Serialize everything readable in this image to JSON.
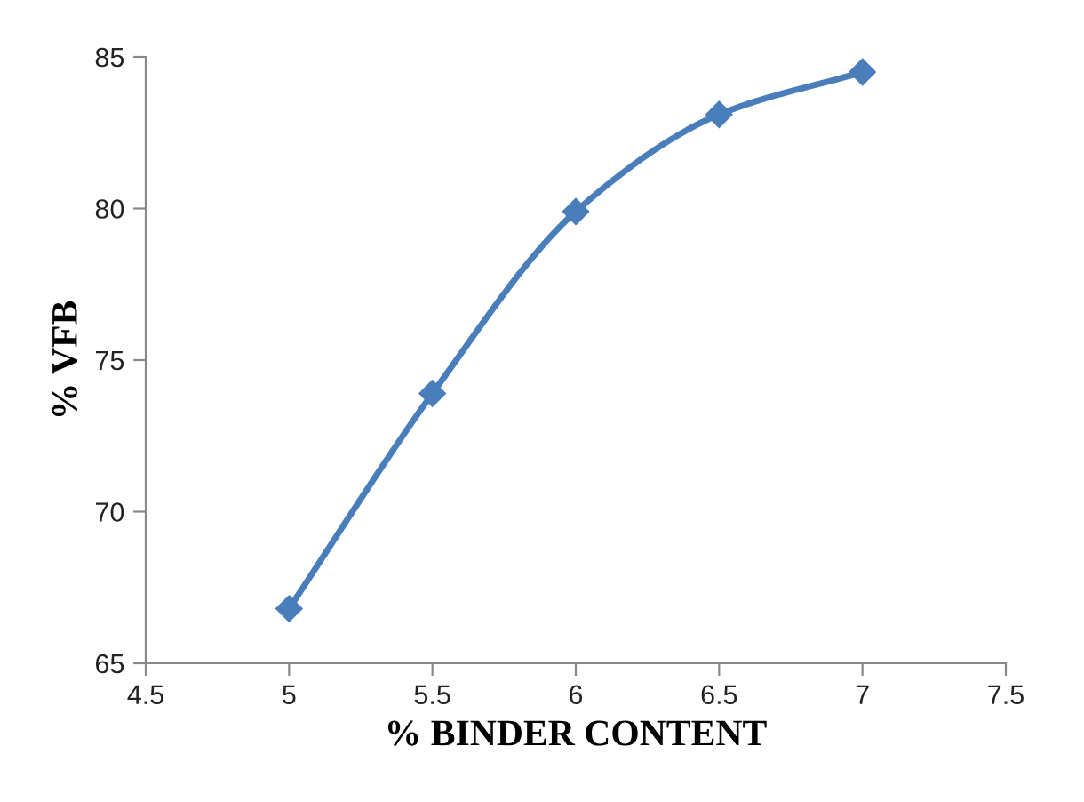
{
  "chart_data": {
    "type": "line",
    "xlabel": "% BINDER CONTENT",
    "ylabel": "% VFB",
    "x": [
      5,
      5.5,
      6,
      6.5,
      7
    ],
    "series": [
      {
        "color": "#4a7ebb",
        "values": [
          66.8,
          73.9,
          79.9,
          83.1,
          84.5
        ]
      }
    ],
    "xlim": [
      4.5,
      7.5
    ],
    "xticks": [
      4.5,
      5,
      5.5,
      6,
      6.5,
      7,
      7.5
    ],
    "ylim": [
      65,
      85
    ],
    "yticks": [
      65,
      70,
      75,
      80,
      85
    ],
    "marker": "diamond",
    "line_style": "solid",
    "grid": false,
    "legend": false
  }
}
